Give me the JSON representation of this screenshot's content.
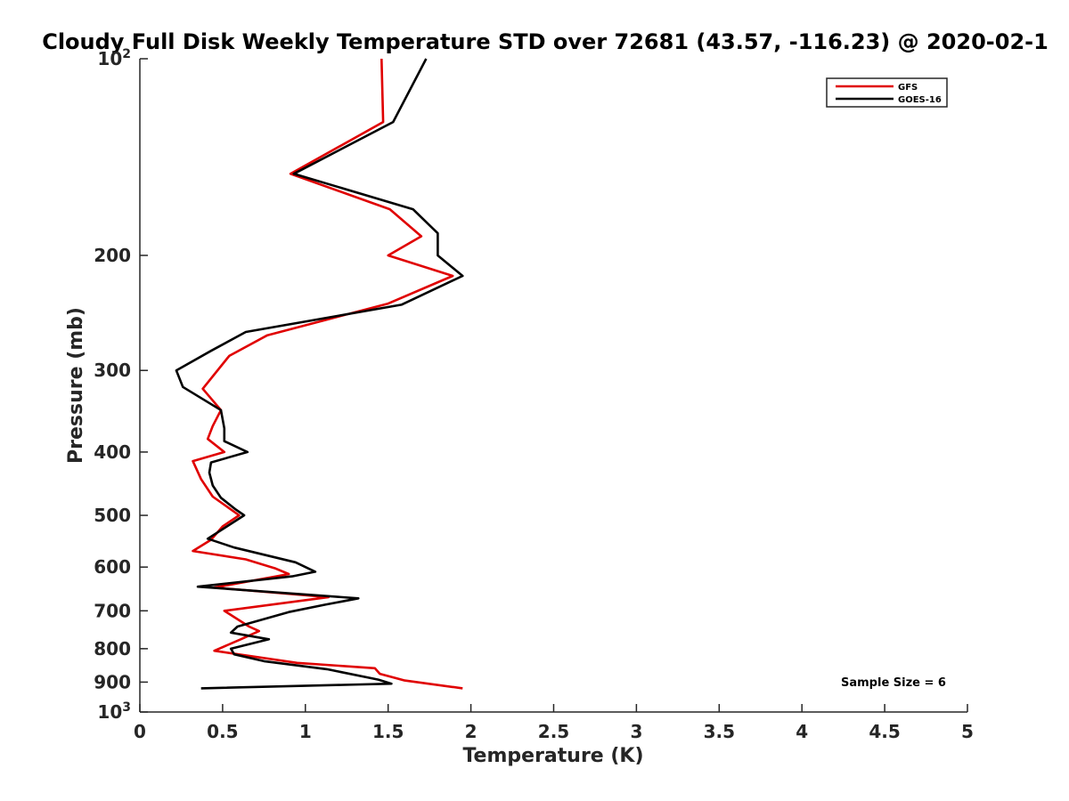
{
  "chart_data": {
    "type": "line",
    "title": "Cloudy Full Disk Weekly Temperature STD over 72681 (43.57, -116.23) @ 2020-02-1",
    "xlabel": "Temperature (K)",
    "ylabel": "Pressure (mb)",
    "xlim": [
      0,
      5
    ],
    "ylim": [
      100,
      1000
    ],
    "y_scale": "log",
    "y_reversed": true,
    "grid": false,
    "legend_position": "top-right",
    "x_ticks": [
      {
        "value": 0,
        "label": "0"
      },
      {
        "value": 0.5,
        "label": "0.5"
      },
      {
        "value": 1,
        "label": "1"
      },
      {
        "value": 1.5,
        "label": "1.5"
      },
      {
        "value": 2,
        "label": "2"
      },
      {
        "value": 2.5,
        "label": "2.5"
      },
      {
        "value": 3,
        "label": "3"
      },
      {
        "value": 3.5,
        "label": "3.5"
      },
      {
        "value": 4,
        "label": "4"
      },
      {
        "value": 4.5,
        "label": "4.5"
      },
      {
        "value": 5,
        "label": "5"
      }
    ],
    "y_ticks": [
      {
        "value": 100,
        "label": "10",
        "sup": "2"
      },
      {
        "value": 200,
        "label": "200"
      },
      {
        "value": 300,
        "label": "300"
      },
      {
        "value": 400,
        "label": "400"
      },
      {
        "value": 500,
        "label": "500"
      },
      {
        "value": 600,
        "label": "600"
      },
      {
        "value": 700,
        "label": "700"
      },
      {
        "value": 800,
        "label": "800"
      },
      {
        "value": 900,
        "label": "900"
      },
      {
        "value": 1000,
        "label": "10",
        "sup": "3"
      }
    ],
    "series": [
      {
        "name": "GFS",
        "color": "#e00000",
        "points": [
          [
            1.46,
            100
          ],
          [
            1.47,
            125
          ],
          [
            0.91,
            150
          ],
          [
            1.51,
            170
          ],
          [
            1.7,
            187
          ],
          [
            1.5,
            200
          ],
          [
            1.89,
            215
          ],
          [
            1.5,
            237
          ],
          [
            0.77,
            265
          ],
          [
            0.54,
            285
          ],
          [
            0.38,
            320
          ],
          [
            0.49,
            345
          ],
          [
            0.44,
            365
          ],
          [
            0.41,
            382
          ],
          [
            0.51,
            400
          ],
          [
            0.32,
            413
          ],
          [
            0.37,
            440
          ],
          [
            0.44,
            468
          ],
          [
            0.6,
            500
          ],
          [
            0.5,
            520
          ],
          [
            0.43,
            545
          ],
          [
            0.32,
            567
          ],
          [
            0.64,
            584
          ],
          [
            0.82,
            603
          ],
          [
            0.9,
            615
          ],
          [
            0.45,
            645
          ],
          [
            1.14,
            667
          ],
          [
            0.51,
            700
          ],
          [
            0.66,
            740
          ],
          [
            0.72,
            752
          ],
          [
            0.61,
            774
          ],
          [
            0.45,
            806
          ],
          [
            0.95,
            841
          ],
          [
            1.42,
            857
          ],
          [
            1.45,
            874
          ],
          [
            1.6,
            895
          ],
          [
            1.95,
            920
          ]
        ]
      },
      {
        "name": "GOES-16",
        "color": "#000000",
        "points": [
          [
            1.73,
            100
          ],
          [
            1.53,
            125
          ],
          [
            0.93,
            150
          ],
          [
            1.65,
            170
          ],
          [
            1.8,
            185
          ],
          [
            1.8,
            200
          ],
          [
            1.95,
            215
          ],
          [
            1.58,
            238
          ],
          [
            0.64,
            262
          ],
          [
            0.43,
            280
          ],
          [
            0.22,
            300
          ],
          [
            0.26,
            318
          ],
          [
            0.49,
            345
          ],
          [
            0.51,
            368
          ],
          [
            0.51,
            385
          ],
          [
            0.65,
            400
          ],
          [
            0.43,
            415
          ],
          [
            0.42,
            430
          ],
          [
            0.44,
            450
          ],
          [
            0.49,
            470
          ],
          [
            0.58,
            490
          ],
          [
            0.63,
            500
          ],
          [
            0.41,
            543
          ],
          [
            0.57,
            560
          ],
          [
            0.94,
            590
          ],
          [
            1.06,
            610
          ],
          [
            0.92,
            620
          ],
          [
            0.35,
            643
          ],
          [
            1.32,
            670
          ],
          [
            1.12,
            685
          ],
          [
            0.9,
            703
          ],
          [
            0.59,
            740
          ],
          [
            0.55,
            756
          ],
          [
            0.78,
            774
          ],
          [
            0.55,
            800
          ],
          [
            0.57,
            816
          ],
          [
            0.75,
            836
          ],
          [
            1.13,
            860
          ],
          [
            1.44,
            892
          ],
          [
            1.52,
            905
          ],
          [
            0.37,
            920
          ]
        ]
      }
    ],
    "annotations": [
      {
        "text": "Sample Size = 6",
        "position": "bottom-right"
      }
    ]
  }
}
